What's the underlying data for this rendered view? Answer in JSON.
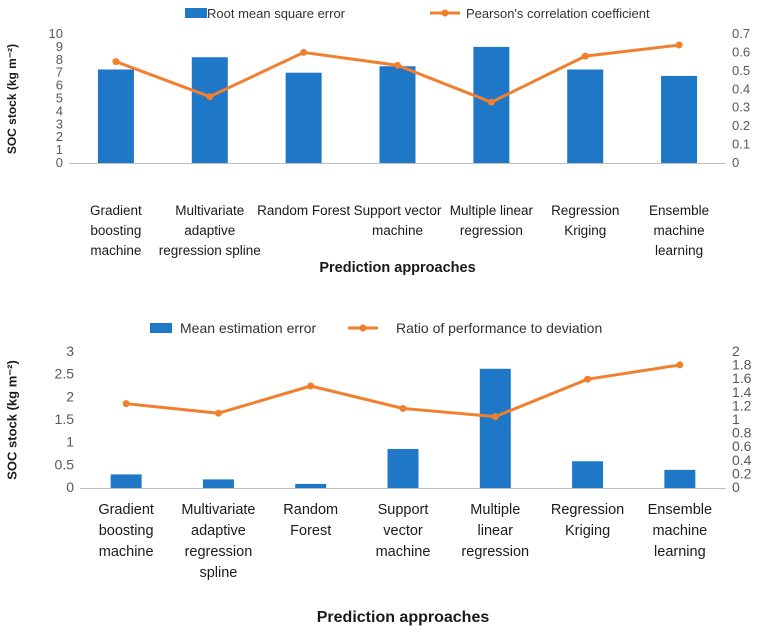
{
  "chart_data": [
    {
      "type": "bar+line",
      "categories": [
        [
          "Gradient",
          "boosting",
          "machine"
        ],
        [
          "Multivariate",
          "adaptive",
          "regression spline"
        ],
        [
          "Random Forest"
        ],
        [
          "Support vector",
          "machine"
        ],
        [
          "Multiple linear",
          "regression"
        ],
        [
          "Regression",
          "Kriging"
        ],
        [
          "Ensemble",
          "machine",
          "learning"
        ]
      ],
      "series": [
        {
          "name": "Root mean square error",
          "kind": "bar",
          "axis": "left",
          "values": [
            7.25,
            8.2,
            7.0,
            7.5,
            9.0,
            7.25,
            6.75
          ]
        },
        {
          "name": "Pearson's correlation coefficient",
          "kind": "line",
          "axis": "right",
          "values": [
            0.55,
            0.36,
            0.6,
            0.53,
            0.33,
            0.58,
            0.64
          ]
        }
      ],
      "ylabel": "SOC stock (kg m⁻²)",
      "xlabel": "Prediction approaches",
      "ylim": [
        0,
        10
      ],
      "yticks": [
        "0",
        "1",
        "2",
        "3",
        "4",
        "5",
        "6",
        "7",
        "8",
        "9",
        "10"
      ],
      "y2lim": [
        0,
        0.7
      ],
      "y2ticks": [
        "0",
        "0.1",
        "0.2",
        "0.3",
        "0.4",
        "0.5",
        "0.6",
        "0.7"
      ],
      "legend_position": "top"
    },
    {
      "type": "bar+line",
      "categories": [
        [
          "Gradient",
          "boosting",
          "machine"
        ],
        [
          "Multivariate",
          "adaptive",
          "regression",
          "spline"
        ],
        [
          "Random",
          "Forest"
        ],
        [
          "Support",
          "vector",
          "machine"
        ],
        [
          "Multiple",
          "linear",
          "regression"
        ],
        [
          "Regression",
          "Kriging"
        ],
        [
          "Ensemble",
          "machine",
          "learning"
        ]
      ],
      "series": [
        {
          "name": "Mean estimation error",
          "kind": "bar",
          "axis": "left",
          "values": [
            0.3,
            0.19,
            0.09,
            0.86,
            2.63,
            0.59,
            0.4
          ]
        },
        {
          "name": "Ratio of performance to deviation",
          "kind": "line",
          "axis": "right",
          "values": [
            1.24,
            1.1,
            1.5,
            1.17,
            1.05,
            1.6,
            1.81
          ]
        }
      ],
      "ylabel": "SOC stock (kg m⁻²)",
      "xlabel": "Prediction approaches",
      "ylim": [
        0,
        3
      ],
      "yticks": [
        "0",
        "0.5",
        "1",
        "1.5",
        "2",
        "2.5",
        "3"
      ],
      "y2lim": [
        0,
        2
      ],
      "y2ticks": [
        "0",
        "0.2",
        "0.4",
        "0.6",
        "0.8",
        "1",
        "1.2",
        "1.4",
        "1.6",
        "1.8",
        "2"
      ],
      "legend_position": "top"
    }
  ],
  "colors": {
    "bar": "#1f77c8",
    "line": "#f07f2e",
    "axis": "#bfbfbf"
  }
}
